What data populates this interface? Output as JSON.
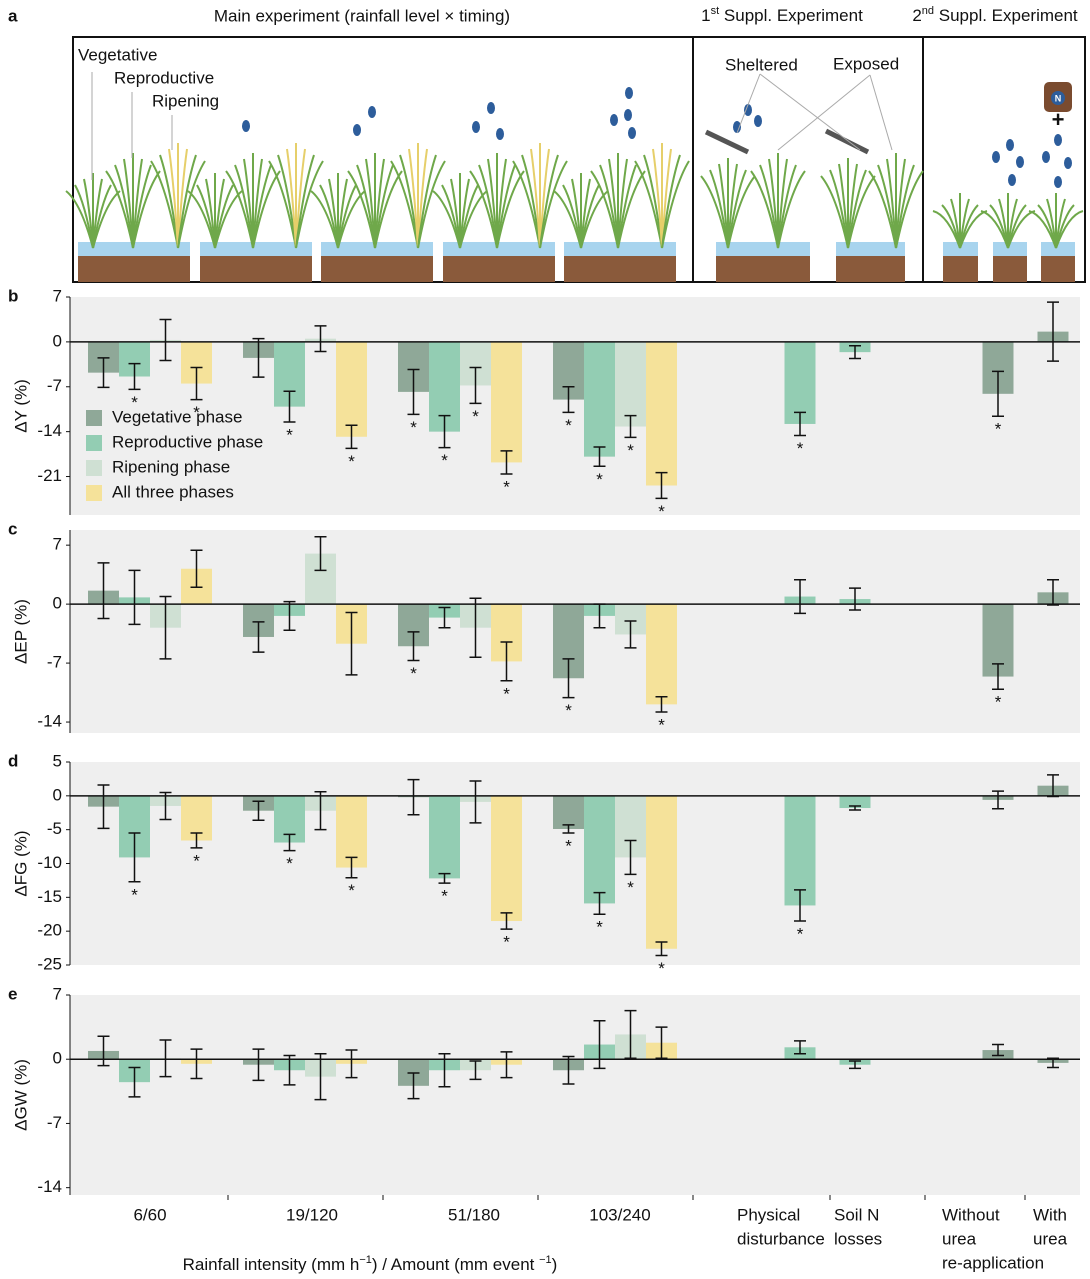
{
  "panel_a": {
    "letter": "a",
    "title": "Main experiment (rainfall level × timing)",
    "suppl1": [
      {
        "text": "1"
      },
      {
        "sup": "st"
      },
      {
        "text": " Suppl. Experiment"
      }
    ],
    "suppl2": [
      {
        "text": "2"
      },
      {
        "sup": "nd"
      },
      {
        "text": " Suppl. Experiment"
      }
    ],
    "stages": [
      "Vegetative",
      "Reproductive",
      "Ripening"
    ],
    "sheltered": "Sheltered",
    "exposed": "Exposed",
    "plus": "+",
    "n_label": "N"
  },
  "chart_data": [
    {
      "type": "bar",
      "panel": "b",
      "ylabel": "ΔY (%)",
      "ylim": [
        -27,
        7
      ],
      "yticks": [
        7,
        0,
        -7,
        -14,
        -21
      ],
      "legend": "left",
      "sig_label": "*",
      "series": [
        {
          "name": "Vegetative phase",
          "color": "#8fa898",
          "values": [
            -4.8,
            -2.5,
            -7.8,
            -9,
            null,
            null,
            -8.1,
            1.6
          ],
          "errors": [
            2.3,
            3,
            3.5,
            2,
            null,
            null,
            3.5,
            4.6
          ],
          "significant": [
            false,
            false,
            true,
            true,
            false,
            false,
            true,
            false
          ]
        },
        {
          "name": "Reproductive phase",
          "color": "#93cdb3",
          "values": [
            -5.4,
            -10.1,
            -14,
            -17.9,
            -12.8,
            -1.6,
            null,
            null
          ],
          "errors": [
            2,
            2.4,
            2.5,
            1.5,
            1.8,
            1,
            null,
            null
          ],
          "significant": [
            true,
            true,
            true,
            true,
            true,
            false,
            false,
            false
          ]
        },
        {
          "name": "Ripening phase",
          "color": "#cfe0d3",
          "values": [
            0.3,
            0.5,
            -6.8,
            -13.2,
            null,
            null,
            null,
            null
          ],
          "errors": [
            3.2,
            2,
            2.8,
            1.7,
            null,
            null,
            null,
            null
          ],
          "significant": [
            false,
            false,
            true,
            true,
            false,
            false,
            false,
            false
          ]
        },
        {
          "name": "All three phases",
          "color": "#f5e29a",
          "values": [
            -6.5,
            -14.8,
            -18.8,
            -22.4,
            null,
            null,
            null,
            null
          ],
          "errors": [
            2.5,
            1.8,
            1.8,
            2,
            null,
            null,
            null,
            null
          ],
          "significant": [
            true,
            true,
            true,
            true,
            false,
            false,
            false,
            false
          ]
        }
      ]
    },
    {
      "type": "bar",
      "panel": "c",
      "ylabel": "ΔEP (%)",
      "ylim": [
        -15.3,
        8.8
      ],
      "yticks": [
        7,
        0,
        -7,
        -14
      ],
      "sig_label": "*",
      "series": [
        {
          "color": "#8fa898",
          "values": [
            1.6,
            -3.9,
            -5,
            -8.8,
            null,
            null,
            -8.6,
            1.4
          ],
          "errors": [
            3.3,
            1.8,
            1.7,
            2.3,
            null,
            null,
            1.5,
            1.5
          ],
          "significant": [
            false,
            false,
            true,
            true,
            false,
            false,
            true,
            false
          ]
        },
        {
          "color": "#93cdb3",
          "values": [
            0.8,
            -1.4,
            -1.6,
            -1.4,
            0.9,
            0.6,
            null,
            null
          ],
          "errors": [
            3.2,
            1.7,
            1.2,
            1.4,
            2,
            1.3,
            null,
            null
          ],
          "significant": [
            false,
            false,
            false,
            false,
            false,
            false,
            false,
            false
          ]
        },
        {
          "color": "#cfe0d3",
          "values": [
            -2.8,
            6,
            -2.8,
            -3.6,
            null,
            null,
            null,
            null
          ],
          "errors": [
            3.7,
            2,
            3.5,
            1.6,
            null,
            null,
            null,
            null
          ],
          "significant": [
            false,
            false,
            false,
            false,
            false,
            false,
            false,
            false
          ]
        },
        {
          "color": "#f5e29a",
          "values": [
            4.2,
            -4.7,
            -6.8,
            -11.9,
            null,
            null,
            null,
            null
          ],
          "errors": [
            2.2,
            3.7,
            2.3,
            0.9,
            null,
            null,
            null,
            null
          ],
          "significant": [
            false,
            false,
            true,
            true,
            false,
            false,
            false,
            false
          ]
        }
      ]
    },
    {
      "type": "bar",
      "panel": "d",
      "ylabel": "ΔFG (%)",
      "ylim": [
        -25,
        5
      ],
      "yticks": [
        5,
        0,
        -5,
        -10,
        -15,
        -20,
        -25
      ],
      "sig_label": "*",
      "series": [
        {
          "color": "#8fa898",
          "values": [
            -1.6,
            -2.2,
            -0.2,
            -4.9,
            null,
            null,
            -0.6,
            1.5
          ],
          "errors": [
            3.2,
            1.4,
            2.6,
            0.6,
            null,
            null,
            1.3,
            1.6
          ],
          "significant": [
            false,
            false,
            false,
            true,
            false,
            false,
            false,
            false
          ]
        },
        {
          "color": "#93cdb3",
          "values": [
            -9.1,
            -6.9,
            -12.2,
            -15.9,
            -16.2,
            -1.8,
            null,
            null
          ],
          "errors": [
            3.6,
            1.2,
            0.7,
            1.6,
            2.3,
            0.3,
            null,
            null
          ],
          "significant": [
            true,
            true,
            true,
            true,
            true,
            false,
            false,
            false
          ]
        },
        {
          "color": "#cfe0d3",
          "values": [
            -1.5,
            -2.2,
            -0.9,
            -9.1,
            null,
            null,
            null,
            null
          ],
          "errors": [
            2,
            2.8,
            3.1,
            2.5,
            null,
            null,
            null,
            null
          ],
          "significant": [
            false,
            false,
            false,
            true,
            false,
            false,
            false,
            false
          ]
        },
        {
          "color": "#f5e29a",
          "values": [
            -6.6,
            -10.6,
            -18.5,
            -22.6,
            null,
            null,
            null,
            null
          ],
          "errors": [
            1.1,
            1.5,
            1.2,
            1,
            null,
            null,
            null,
            null
          ],
          "significant": [
            true,
            true,
            true,
            true,
            false,
            false,
            false,
            false
          ]
        }
      ]
    },
    {
      "type": "bar",
      "panel": "e",
      "ylabel": "ΔGW (%)",
      "ylim": [
        -14.8,
        7
      ],
      "yticks": [
        7,
        0,
        -7,
        -14
      ],
      "categories": [
        [
          "6/60"
        ],
        [
          "19/120"
        ],
        [
          "51/180"
        ],
        [
          "103/240"
        ],
        [
          "Physical",
          "disturbance"
        ],
        [
          "Soil N",
          "losses"
        ],
        [
          "Without",
          "urea",
          "re-application"
        ],
        [
          "With",
          "urea"
        ]
      ],
      "xlabel": [
        {
          "text": "Rainfall intensity (mm h"
        },
        {
          "sup": "−1"
        },
        {
          "text": ") / Amount (mm event "
        },
        {
          "sup": "−1"
        },
        {
          "text": ")"
        }
      ],
      "series": [
        {
          "color": "#8fa898",
          "values": [
            0.9,
            -0.6,
            -2.9,
            -1.2,
            null,
            null,
            1,
            -0.4
          ],
          "errors": [
            1.6,
            1.7,
            1.4,
            1.5,
            null,
            null,
            0.6,
            0.5
          ]
        },
        {
          "color": "#93cdb3",
          "values": [
            -2.5,
            -1.2,
            -1.2,
            1.6,
            1.3,
            -0.6,
            null,
            null
          ],
          "errors": [
            1.6,
            1.6,
            1.8,
            2.6,
            0.7,
            0.4,
            null,
            null
          ]
        },
        {
          "color": "#cfe0d3",
          "values": [
            0.1,
            -1.9,
            -1.2,
            2.7,
            null,
            null,
            null,
            null
          ],
          "errors": [
            2,
            2.5,
            1,
            2.6,
            null,
            null,
            null,
            null
          ]
        },
        {
          "color": "#f5e29a",
          "values": [
            -0.5,
            -0.5,
            -0.6,
            1.8,
            null,
            null,
            null,
            null
          ],
          "errors": [
            1.6,
            1.5,
            1.4,
            1.7,
            null,
            null,
            null,
            null
          ]
        }
      ]
    }
  ]
}
